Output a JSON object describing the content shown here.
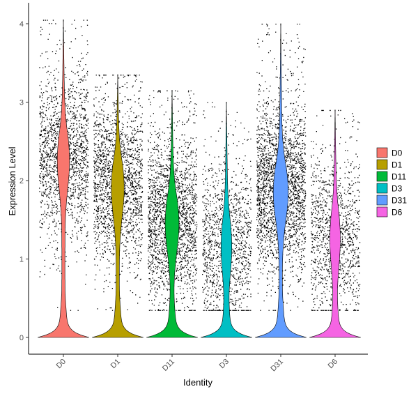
{
  "chart_data": {
    "type": "violin",
    "xlabel": "Identity",
    "ylabel": "Expression Level",
    "ylim": [
      -0.2,
      4.1
    ],
    "yticks": [
      "0",
      "1",
      "2",
      "3",
      "4"
    ],
    "categories": [
      "D0",
      "D1",
      "D11",
      "D3",
      "D31",
      "D6"
    ],
    "legend_position": "right",
    "grid": false,
    "series": [
      {
        "name": "D0",
        "color": "#F8766D",
        "max": 4.05,
        "upper_mode": 2.25,
        "zero_fraction": 0.12,
        "density": 1.0
      },
      {
        "name": "D1",
        "color": "#B79F00",
        "max": 3.35,
        "upper_mode": 1.9,
        "zero_fraction": 0.13,
        "density": 1.1
      },
      {
        "name": "D11",
        "color": "#00BA38",
        "max": 3.15,
        "upper_mode": 1.45,
        "zero_fraction": 0.14,
        "density": 1.25
      },
      {
        "name": "D3",
        "color": "#00BFC4",
        "max": 3.0,
        "upper_mode": 1.15,
        "zero_fraction": 0.14,
        "density": 0.75
      },
      {
        "name": "D31",
        "color": "#619CFF",
        "max": 4.0,
        "upper_mode": 1.85,
        "zero_fraction": 0.12,
        "density": 1.45
      },
      {
        "name": "D6",
        "color": "#F564E3",
        "max": 2.9,
        "upper_mode": 1.25,
        "zero_fraction": 0.14,
        "density": 0.7
      }
    ]
  }
}
